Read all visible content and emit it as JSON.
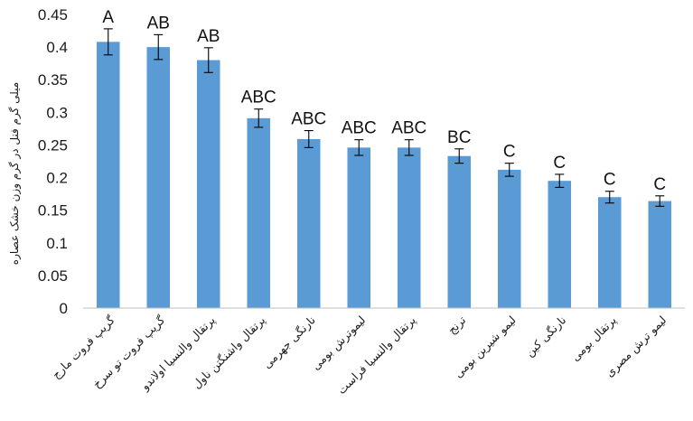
{
  "chart_data": {
    "type": "bar",
    "ylabel": "میلی گرم فنل در گرم وزن خشک عصاره",
    "ylim": [
      0,
      0.45
    ],
    "ytick_step": 0.05,
    "grid": false,
    "yticks": [
      "0",
      "0.05",
      "0.1",
      "0.15",
      "0.2",
      "0.25",
      "0.3",
      "0.35",
      "0.4",
      "0.45"
    ],
    "bar_color": "#5b9bd5",
    "categories": [
      "گریپ فروت مارج",
      "گریپ فروت تو سرخ",
      "پرتقال والنسیا اولاندو",
      "پرتقال واشنگتن ناول",
      "نارنگی جهرمی",
      "لیموترش بومی",
      "پرتقال والنسیا فراست",
      "ترنج",
      "لیمو شیرین بومی",
      "نارنگی کین",
      "پرتقال بومی",
      "لیمو ترش مصری"
    ],
    "values": [
      0.408,
      0.4,
      0.38,
      0.291,
      0.259,
      0.246,
      0.246,
      0.233,
      0.212,
      0.195,
      0.17,
      0.164
    ],
    "errors": [
      0.02,
      0.019,
      0.019,
      0.014,
      0.013,
      0.012,
      0.012,
      0.011,
      0.01,
      0.01,
      0.009,
      0.008
    ],
    "labels": [
      "A",
      "AB",
      "AB",
      "ABC",
      "ABC",
      "ABC",
      "ABC",
      "BC",
      "C",
      "C",
      "C",
      "C"
    ]
  }
}
